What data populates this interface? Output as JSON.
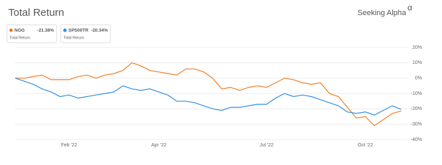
{
  "chart_data": {
    "type": "line",
    "title": "Total Return",
    "brand": "Seeking Alpha",
    "brand_mark": "α",
    "categories": [
      null,
      null,
      null,
      null,
      null,
      null,
      "Feb '22",
      null,
      null,
      null,
      null,
      null,
      null,
      null,
      null,
      null,
      "Apr '22",
      null,
      null,
      null,
      null,
      null,
      null,
      null,
      null,
      null,
      null,
      null,
      "Jul '22",
      null,
      null,
      null,
      null,
      null,
      null,
      null,
      null,
      null,
      null,
      "Oct '22",
      null,
      null,
      null,
      null
    ],
    "series": [
      {
        "name": "NGG",
        "color": "#f47c20",
        "legend_value": "-21.38%",
        "legend_note": "Total Return",
        "values": [
          0,
          0,
          1,
          2,
          -1,
          -1,
          -1,
          1,
          2,
          0,
          2,
          3,
          5,
          10,
          8,
          5,
          4,
          3,
          2,
          6,
          6,
          4,
          0,
          -7,
          -6,
          -8,
          -6,
          -5,
          -6,
          -3,
          0,
          -1,
          -3,
          -4,
          -3,
          -10,
          -12,
          -19,
          -26,
          -25,
          -31,
          -27,
          -23,
          -21.38
        ]
      },
      {
        "name": "SPS00TR",
        "color": "#2f8ee5",
        "legend_value": "-20.34%",
        "legend_note": "Total Return",
        "values": [
          0,
          -2,
          -4,
          -7,
          -9,
          -12,
          -11,
          -13,
          -12,
          -11,
          -10,
          -9,
          -5,
          -7,
          -8,
          -7,
          -9,
          -11,
          -15,
          -15,
          -16,
          -18,
          -20,
          -21,
          -19,
          -19,
          -18,
          -17,
          -17,
          -13,
          -10,
          -12,
          -11,
          -12,
          -14,
          -16,
          -18,
          -22,
          -23,
          -22,
          -24,
          -21,
          -18,
          -20.34
        ]
      }
    ],
    "ylim": [
      -40,
      20
    ],
    "yticks": [
      {
        "value": 20,
        "label": "20%"
      },
      {
        "value": 10,
        "label": "10%"
      },
      {
        "value": 0,
        "label": "0%"
      },
      {
        "value": -10,
        "label": "-10%"
      },
      {
        "value": -20,
        "label": "-20%"
      },
      {
        "value": -30,
        "label": "-30%"
      },
      {
        "value": -40,
        "label": "-40%"
      }
    ],
    "grid": true
  }
}
